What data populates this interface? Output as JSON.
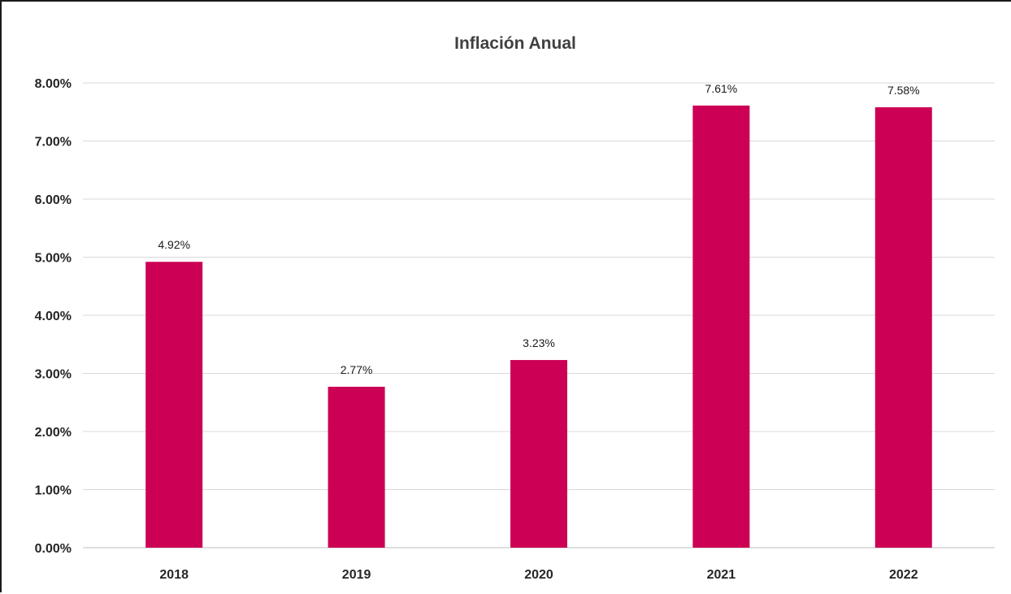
{
  "chart_data": {
    "type": "bar",
    "title": "Inflación Anual",
    "xlabel": "",
    "ylabel": "",
    "categories": [
      "2018",
      "2019",
      "2020",
      "2021",
      "2022"
    ],
    "values": [
      4.92,
      2.77,
      3.23,
      7.61,
      7.58
    ],
    "data_labels": [
      "4.92%",
      "2.77%",
      "3.23%",
      "7.61%",
      "7.58%"
    ],
    "ylim": [
      0,
      8
    ],
    "yticks": [
      0,
      1,
      2,
      3,
      4,
      5,
      6,
      7,
      8
    ],
    "ytick_labels": [
      "0.00%",
      "1.00%",
      "2.00%",
      "3.00%",
      "4.00%",
      "5.00%",
      "6.00%",
      "7.00%",
      "8.00%"
    ],
    "grid": true,
    "legend": "none",
    "bar_color": "#CC0055"
  }
}
